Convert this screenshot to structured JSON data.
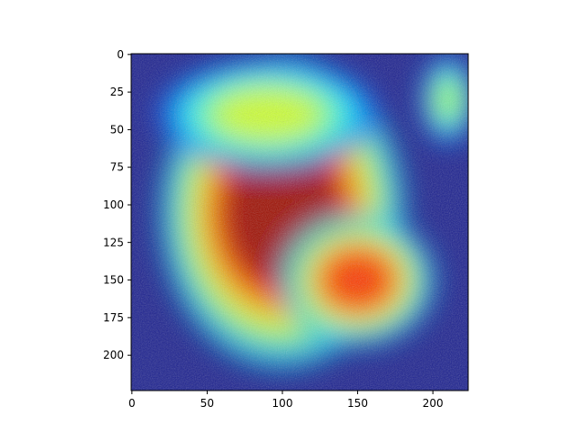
{
  "chart_data": {
    "type": "heatmap",
    "title": "",
    "xlabel": "",
    "ylabel": "",
    "xlim": [
      -0.5,
      223.5
    ],
    "ylim": [
      223.5,
      -0.5
    ],
    "x_ticks": [
      0,
      50,
      100,
      150,
      200
    ],
    "y_ticks": [
      0,
      25,
      50,
      75,
      100,
      125,
      150,
      175,
      200
    ],
    "colormap": "jet",
    "overlay": "heatmap over a photograph",
    "hotspots": [
      {
        "x": 100,
        "y": 105,
        "sx": 55,
        "sy": 70,
        "intensity": 1.0
      },
      {
        "x": 150,
        "y": 150,
        "sx": 35,
        "sy": 30,
        "intensity": 0.85
      },
      {
        "x": 90,
        "y": 40,
        "sx": 50,
        "sy": 25,
        "intensity": 0.6
      },
      {
        "x": 210,
        "y": 30,
        "sx": 12,
        "sy": 20,
        "intensity": 0.55
      }
    ],
    "grid": false
  }
}
